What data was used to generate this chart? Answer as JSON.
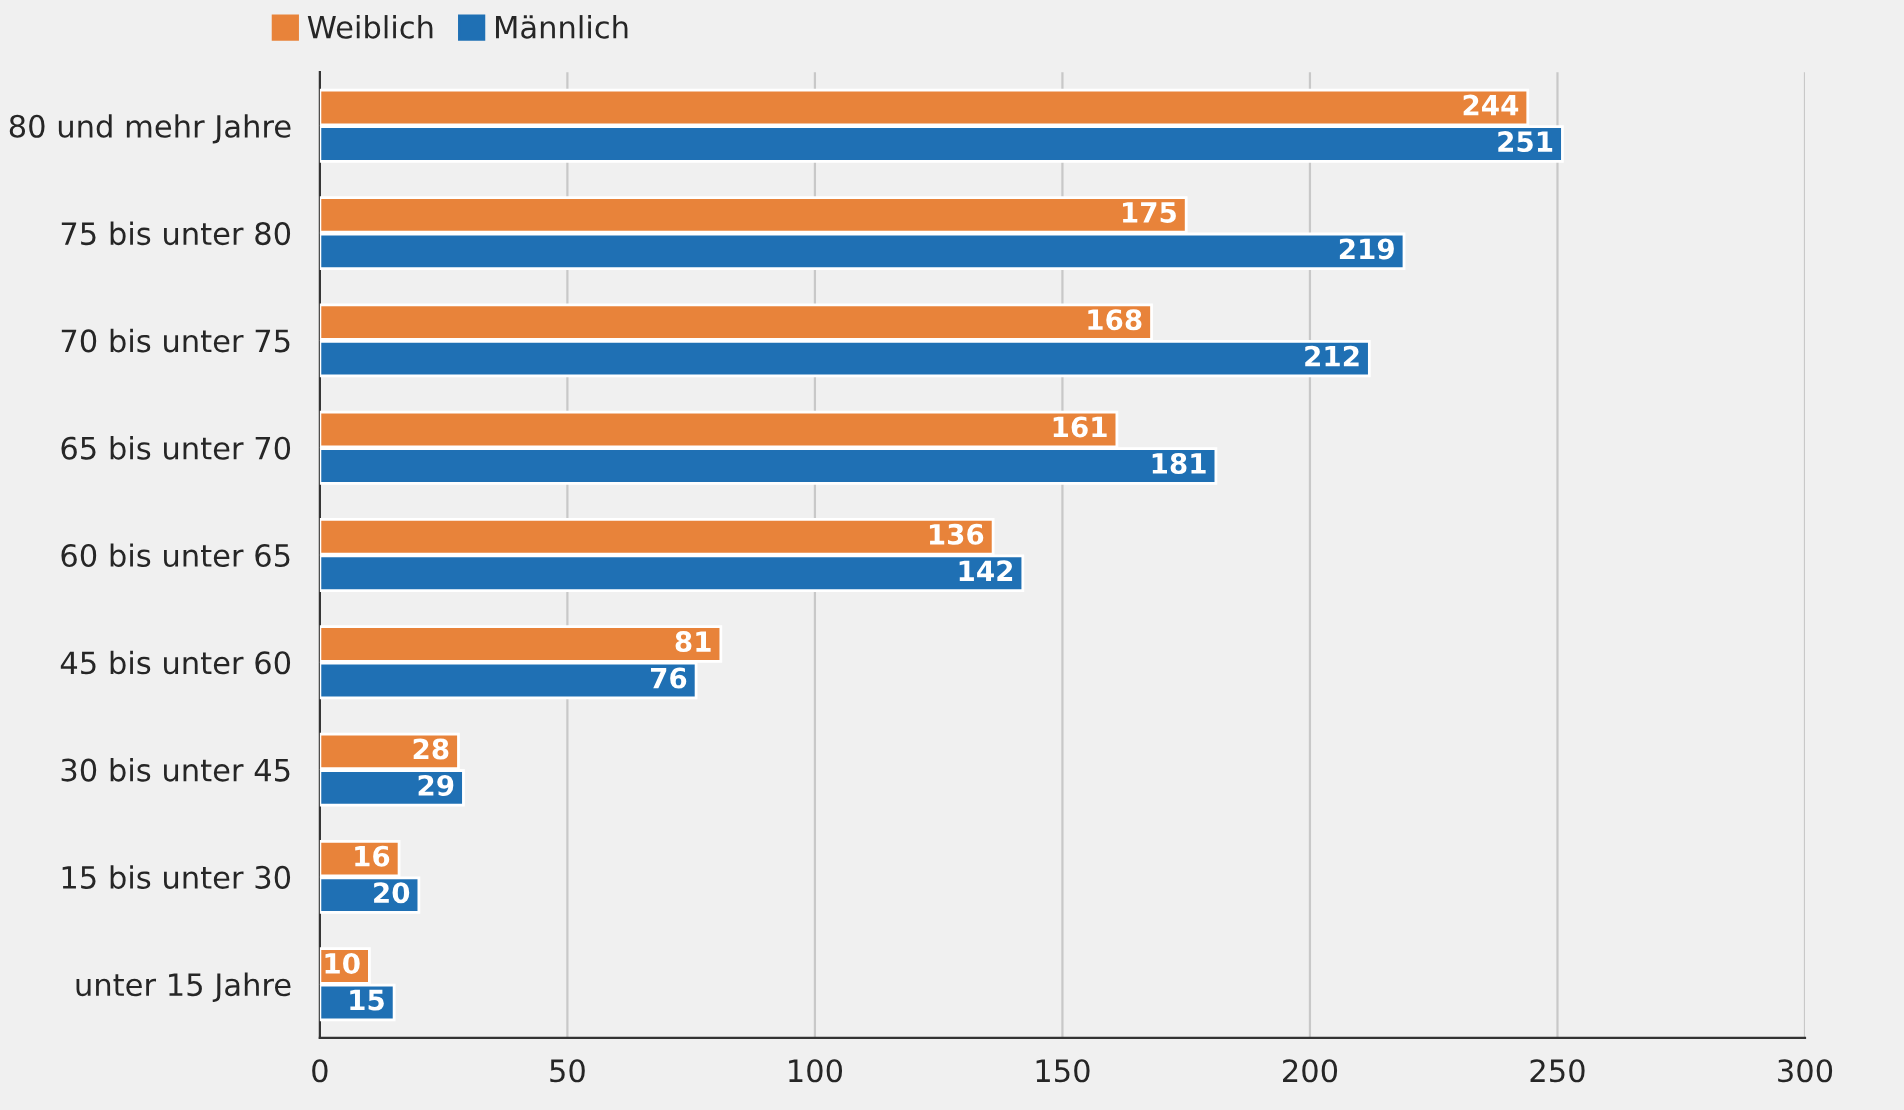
{
  "chart_data": {
    "type": "bar",
    "orientation": "horizontal",
    "categories": [
      "80 und mehr Jahre",
      "75 bis unter 80",
      "70 bis unter 75",
      "65 bis unter 70",
      "60 bis unter 65",
      "45 bis unter 60",
      "30 bis unter 45",
      "15 bis unter 30",
      "unter 15 Jahre"
    ],
    "series": [
      {
        "name": "Weiblich",
        "color": "#e8833a",
        "values": [
          244,
          175,
          168,
          161,
          136,
          81,
          28,
          16,
          10
        ]
      },
      {
        "name": "Männlich",
        "color": "#1f70b4",
        "values": [
          251,
          219,
          212,
          181,
          142,
          76,
          29,
          20,
          15
        ]
      }
    ],
    "xlim": [
      0,
      300
    ],
    "xticks": [
      0,
      50,
      100,
      150,
      200,
      250,
      300
    ],
    "grid": "x",
    "legend": "top left",
    "data_labels": true
  }
}
